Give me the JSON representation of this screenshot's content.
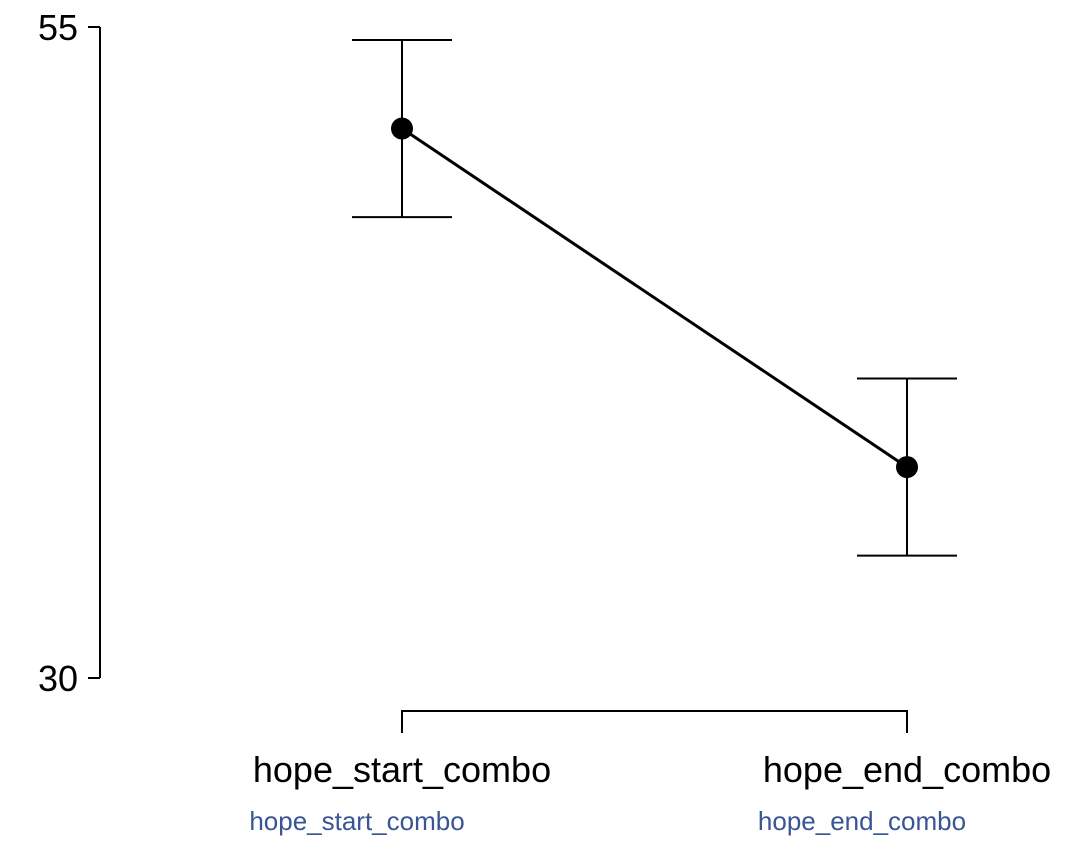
{
  "chart_data": {
    "type": "line",
    "categories": [
      "hope_start_combo",
      "hope_end_combo"
    ],
    "series": [
      {
        "values": [
          51.1,
          38.1
        ],
        "ci_upper": [
          54.5,
          41.5
        ],
        "ci_lower": [
          47.7,
          34.7
        ]
      }
    ],
    "y_ticks": [
      {
        "value": 55,
        "label": "55"
      },
      {
        "value": 30,
        "label": "30"
      }
    ],
    "ylim": [
      30,
      55
    ],
    "title": "",
    "xlabel": "",
    "ylabel": "",
    "grid": false,
    "legend": "none",
    "secondary_labels": [
      "hope_start_combo",
      "hope_end_combo"
    ],
    "colors": {
      "line": "#000000",
      "marker": "#000000",
      "axis": "#000000",
      "secondary_label": "#3a5494"
    }
  }
}
